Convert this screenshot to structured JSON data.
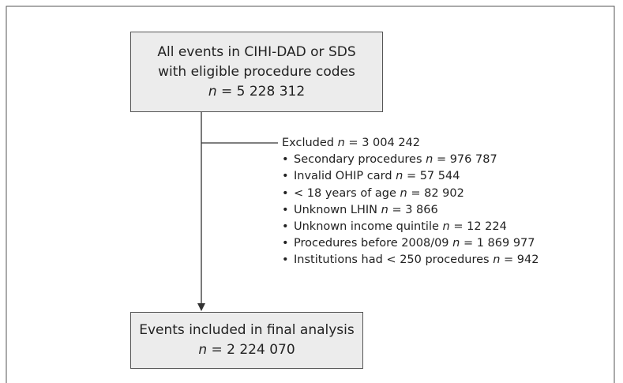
{
  "start": {
    "lines": [
      "All events in CIHI-DAD or SDS",
      "with eligible procedure codes"
    ],
    "count": "n = 5 228 312"
  },
  "excluded": {
    "label": "Excluded",
    "count": "n = 3 004 242",
    "items": [
      {
        "label": "Secondary procedures",
        "count": "n = 976 787"
      },
      {
        "label": "Invalid OHIP card",
        "count": "n = 57 544"
      },
      {
        "label": "< 18 years of age",
        "count": "n = 82 902"
      },
      {
        "label": "Unknown LHIN",
        "count": "n = 3 866"
      },
      {
        "label": "Unknown income quintile",
        "count": "n = 12 224"
      },
      {
        "label": "Procedures before 2008/09",
        "count": "n = 1 869 977"
      },
      {
        "label": "Institutions had < 250 procedures",
        "count": "n = 942"
      }
    ]
  },
  "end": {
    "lines": [
      "Events included in final analysis"
    ],
    "count": "n = 2 224 070"
  }
}
